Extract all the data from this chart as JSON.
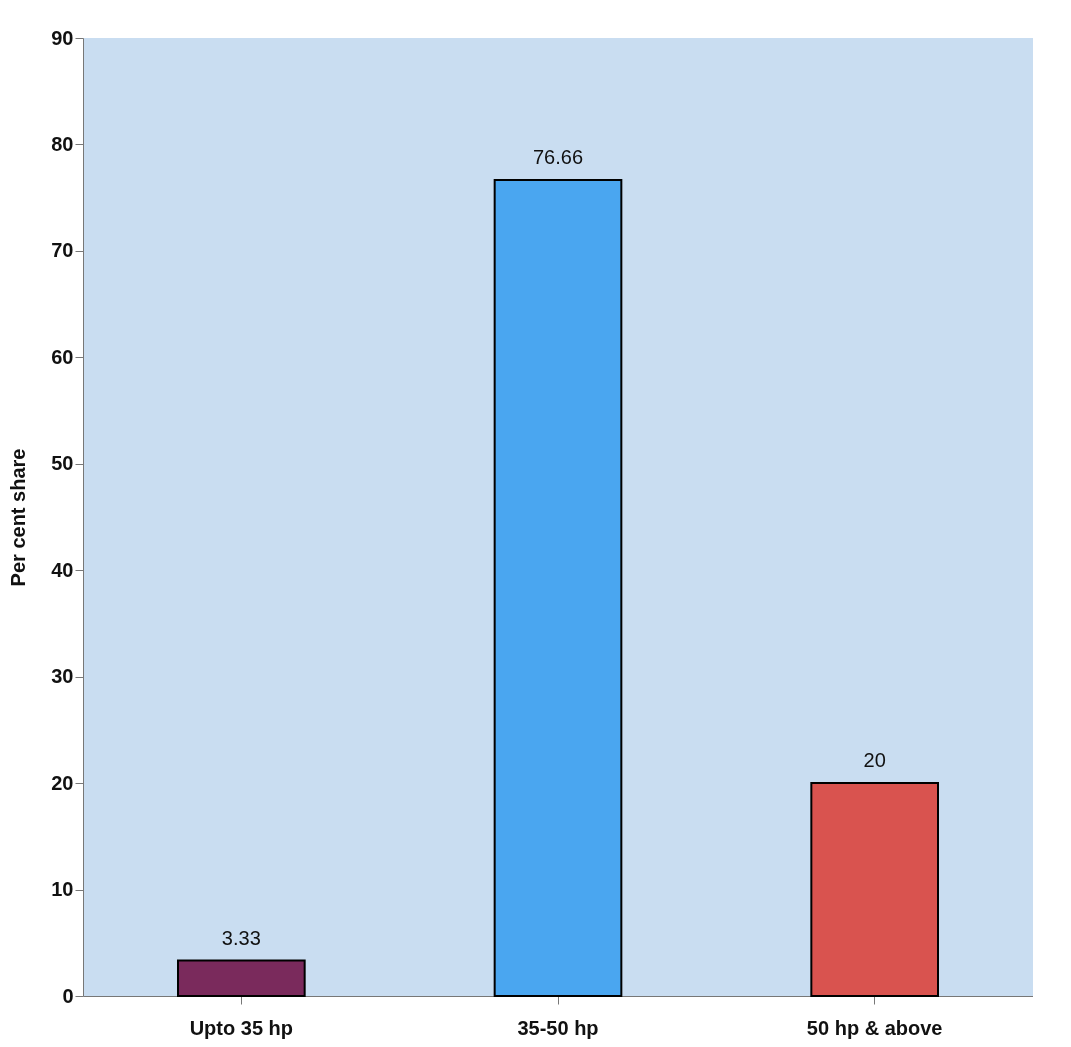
{
  "chart_data": {
    "type": "bar",
    "ylabel": "Per cent share",
    "categories": [
      "Upto 35 hp",
      "35-50 hp",
      "50 hp & above"
    ],
    "values": [
      3.33,
      76.66,
      20
    ],
    "colors": [
      "#7a2a5c",
      "#4aa6f0",
      "#d9534f"
    ],
    "ylim": [
      0,
      90
    ],
    "yticks": [
      0,
      10,
      20,
      30,
      40,
      50,
      60,
      70,
      80,
      90
    ],
    "data_labels": true
  }
}
